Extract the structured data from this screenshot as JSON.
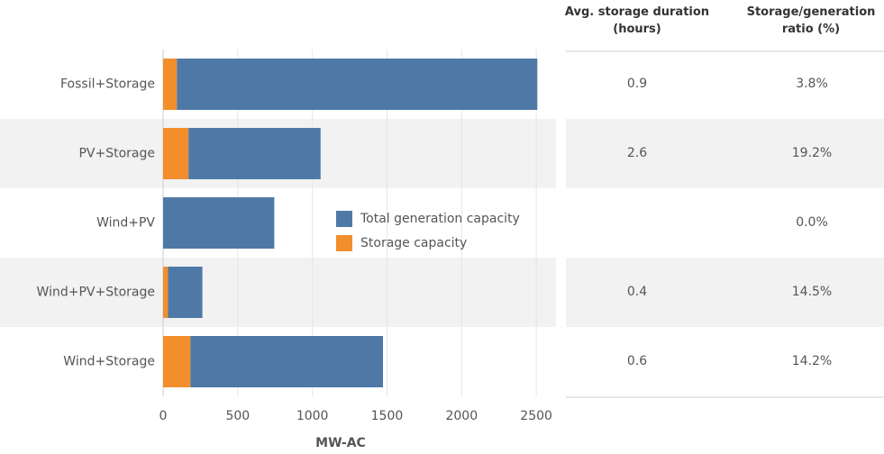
{
  "chart_data": {
    "type": "stacked-barh",
    "x_label": "MW-AC",
    "categories": [
      "Fossil+Storage",
      "PV+Storage",
      "Wind+PV",
      "Wind+PV+Storage",
      "Wind+Storage"
    ],
    "series": [
      {
        "name": "Storage capacity",
        "color": "#f28e2b",
        "values": [
          92,
          170,
          0,
          33,
          183
        ]
      },
      {
        "name": "Total generation capacity",
        "color": "#4e79a7",
        "values": [
          2415,
          885,
          745,
          230,
          1290
        ]
      }
    ],
    "legend_order": [
      1,
      0
    ],
    "xlim": [
      0,
      2620
    ],
    "xticks": [
      0,
      500,
      1000,
      1500,
      2000,
      2500
    ],
    "grid": true
  },
  "table": {
    "headers": [
      "Avg. storage duration (hours)",
      "Storage/generation ratio (%)"
    ],
    "rows": [
      [
        "0.9",
        "3.8%"
      ],
      [
        "2.6",
        "19.2%"
      ],
      [
        null,
        "0.0%"
      ],
      [
        "0.4",
        "14.5%"
      ],
      [
        "0.6",
        "14.2%"
      ]
    ]
  }
}
